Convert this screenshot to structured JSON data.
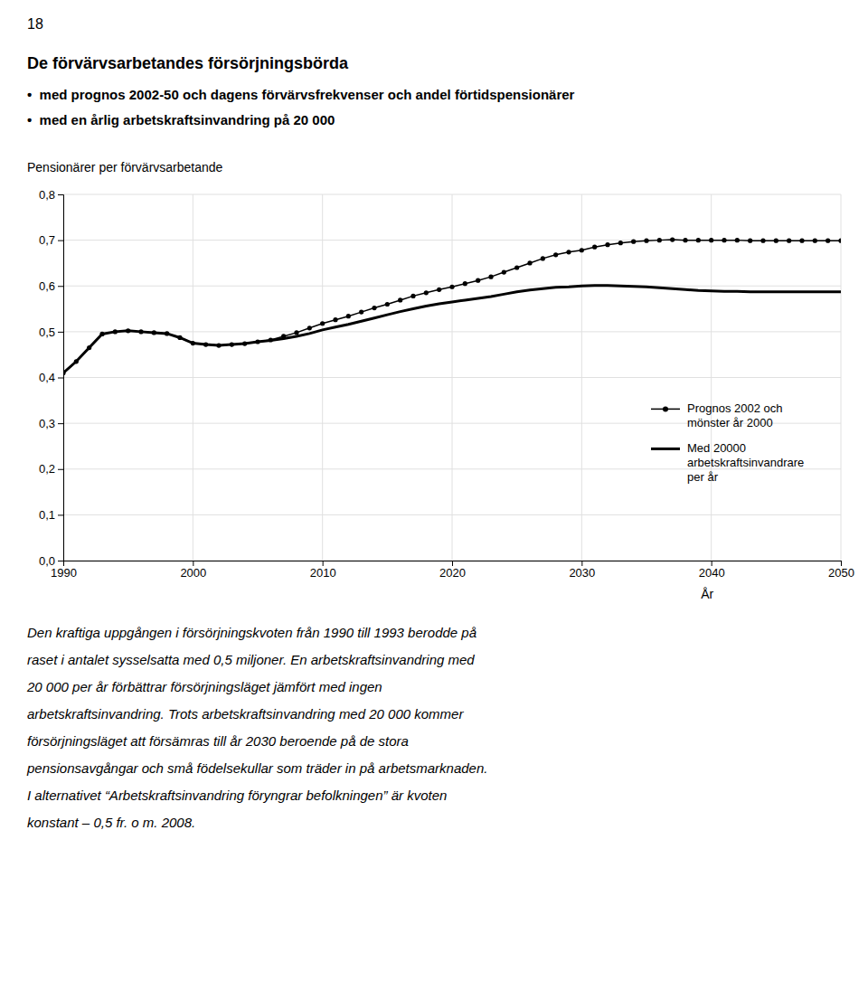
{
  "chart_data": {
    "type": "line",
    "title": "De förvärvsarbetandes försörjningsbörda",
    "subtitle": [
      "•  med prognos 2002-50 och dagens förvärvsfrekvenser och andel förtidspensionärer",
      "•  med en årlig arbetskraftsinvandring på 20 000"
    ],
    "y_label": "Pensionärer per förvärvsarbetande",
    "x_label": "År",
    "annotations": {
      "page": "18",
      "body": [
        "Den kraftiga uppgången i försörjningskvoten från 1990 till 1993 berodde på",
        "raset i antalet sysselsatta med 0,5 miljoner. En arbetskraftsinvandring med",
        "20 000 per år förbättrar försörjningsläget jämfört med ingen",
        "arbetskraftsinvandring. Trots arbetskraftsinvandring med 20 000 kommer",
        "försörjningsläget att försämras till år 2030 beroende på de stora",
        "pensionsavgångar och små födelsekullar som träder in på arbetsmarknaden.",
        "I alternativet “Arbetskraftsinvandring föryngrar befolkningen” är kvoten",
        "konstant – 0,5 fr. o m. 2008."
      ]
    },
    "x": [
      1990,
      1991,
      1992,
      1993,
      1994,
      1995,
      1996,
      1997,
      1998,
      1999,
      2000,
      2001,
      2002,
      2003,
      2004,
      2005,
      2006,
      2007,
      2008,
      2009,
      2010,
      2011,
      2012,
      2013,
      2014,
      2015,
      2016,
      2017,
      2018,
      2019,
      2020,
      2021,
      2022,
      2023,
      2024,
      2025,
      2026,
      2027,
      2028,
      2029,
      2030,
      2031,
      2032,
      2033,
      2034,
      2035,
      2036,
      2037,
      2038,
      2039,
      2040,
      2041,
      2042,
      2043,
      2044,
      2045,
      2046,
      2047,
      2048,
      2049,
      2050
    ],
    "series": [
      {
        "name": "Prognos 2002 och\nmönster år 2000",
        "color": "#000000",
        "marker": "circle",
        "line_style": "solid",
        "values": [
          0.41,
          0.435,
          0.465,
          0.495,
          0.5,
          0.502,
          0.5,
          0.498,
          0.496,
          0.487,
          0.475,
          0.472,
          0.47,
          0.472,
          0.474,
          0.478,
          0.482,
          0.49,
          0.498,
          0.508,
          0.518,
          0.526,
          0.534,
          0.543,
          0.552,
          0.56,
          0.569,
          0.578,
          0.585,
          0.592,
          0.598,
          0.605,
          0.612,
          0.62,
          0.63,
          0.64,
          0.65,
          0.66,
          0.668,
          0.674,
          0.678,
          0.685,
          0.69,
          0.694,
          0.697,
          0.699,
          0.7,
          0.701,
          0.7,
          0.7,
          0.7,
          0.7,
          0.7,
          0.699,
          0.699,
          0.699,
          0.699,
          0.699,
          0.699,
          0.699,
          0.699
        ]
      },
      {
        "name": "Med 20000\narbetskraftsinvandrare\nper år",
        "color": "#000000",
        "marker": "none",
        "line_style": "solid",
        "values": [
          0.41,
          0.435,
          0.465,
          0.495,
          0.5,
          0.502,
          0.5,
          0.498,
          0.496,
          0.487,
          0.475,
          0.472,
          0.47,
          0.472,
          0.474,
          0.478,
          0.481,
          0.485,
          0.49,
          0.496,
          0.504,
          0.51,
          0.516,
          0.523,
          0.53,
          0.537,
          0.544,
          0.55,
          0.556,
          0.561,
          0.565,
          0.569,
          0.573,
          0.577,
          0.582,
          0.587,
          0.591,
          0.594,
          0.597,
          0.598,
          0.6,
          0.601,
          0.601,
          0.6,
          0.599,
          0.598,
          0.596,
          0.594,
          0.592,
          0.59,
          0.589,
          0.588,
          0.588,
          0.587,
          0.587,
          0.587,
          0.587,
          0.587,
          0.587,
          0.587,
          0.587
        ]
      }
    ],
    "xlim": [
      1990,
      2050
    ],
    "ylim": [
      0,
      0.8
    ],
    "xticks": [
      1990,
      2000,
      2010,
      2020,
      2030,
      2040,
      2050
    ],
    "yticks": [
      {
        "value": 0,
        "label": "0,0"
      },
      {
        "value": 0.1,
        "label": "0,1"
      },
      {
        "value": 0.2,
        "label": "0,2"
      },
      {
        "value": 0.3,
        "label": "0,3"
      },
      {
        "value": 0.4,
        "label": "0,4"
      },
      {
        "value": 0.5,
        "label": "0,5"
      },
      {
        "value": 0.6,
        "label": "0,6"
      },
      {
        "value": 0.7,
        "label": "0,7"
      },
      {
        "value": 0.8,
        "label": "0,8"
      }
    ],
    "grid": true
  }
}
